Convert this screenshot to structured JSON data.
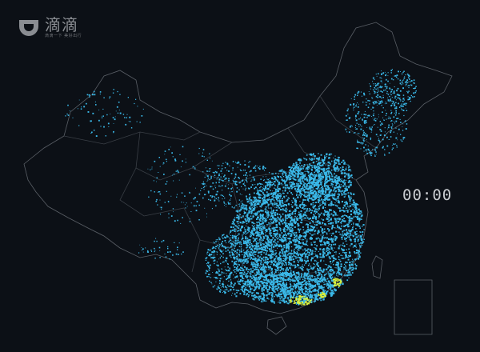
{
  "brand": {
    "name": "滴滴",
    "tagline": "滴滴一下 美好出行",
    "logo_color": "#8a8d92"
  },
  "clock": {
    "time": "00:00"
  },
  "map": {
    "region": "China",
    "background": "#0c1016",
    "border_color": "#5a5f66",
    "point_color": "#3ab8e8",
    "hotspot_color": "#d8f040"
  }
}
